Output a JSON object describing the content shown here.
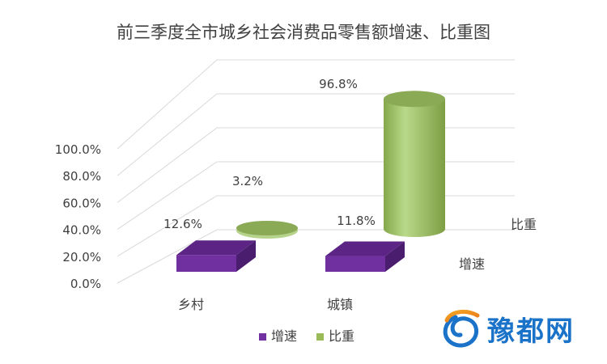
{
  "chart_data": {
    "type": "bar",
    "title": "前三季度全市城乡社会消费品零售额增速、比重图",
    "categories": [
      "乡村",
      "城镇"
    ],
    "series": [
      {
        "name": "增速",
        "values": [
          12.6,
          11.8
        ],
        "labels": [
          "12.6%",
          "11.8%"
        ],
        "color": "#7030a0"
      },
      {
        "name": "比重",
        "values": [
          3.2,
          96.8
        ],
        "labels": [
          "3.2%",
          "96.8%"
        ],
        "color": "#9bbb59"
      }
    ],
    "yticks": [
      "0.0%",
      "20.0%",
      "40.0%",
      "60.0%",
      "80.0%",
      "100.0%"
    ],
    "ylim": [
      0,
      100
    ],
    "grid": true,
    "legend_position": "bottom",
    "depth_axis_labels": [
      "增速",
      "比重"
    ]
  },
  "watermark": {
    "text": "豫都网",
    "color": "#1a73c8"
  }
}
